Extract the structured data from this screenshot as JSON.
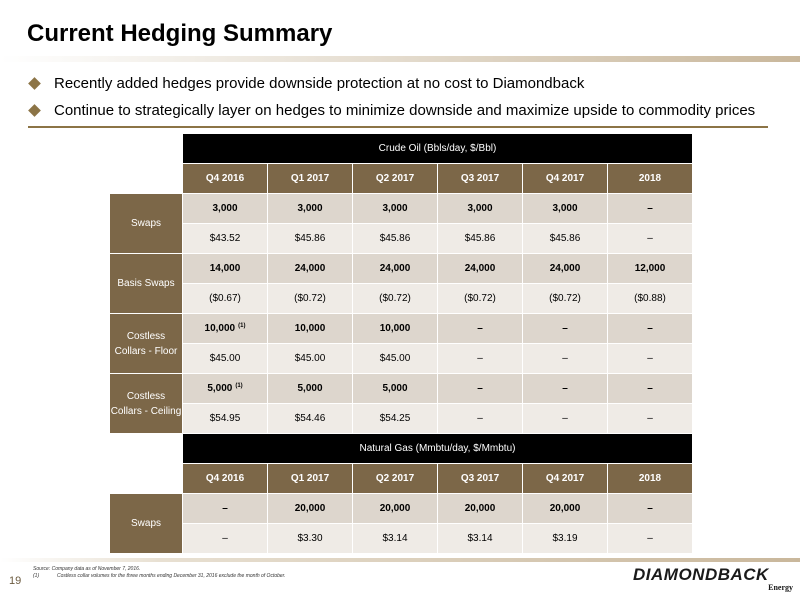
{
  "title": "Current Hedging Summary",
  "bullets": [
    "Recently added hedges provide downside protection at no cost to Diamondback",
    "Continue to strategically layer on hedges to minimize downside and maximize upside to commodity prices"
  ],
  "columns": [
    "Q4 2016",
    "Q1 2017",
    "Q2 2017",
    "Q3 2017",
    "Q4 2017",
    "2018"
  ],
  "crude_oil": {
    "title": "Crude Oil (Bbls/day, $/Bbl)",
    "groups": [
      {
        "label": "Swaps",
        "volume": [
          "3,000",
          "3,000",
          "3,000",
          "3,000",
          "3,000",
          "–"
        ],
        "price": [
          "$43.52",
          "$45.86",
          "$45.86",
          "$45.86",
          "$45.86",
          "–"
        ]
      },
      {
        "label": "Basis Swaps",
        "volume": [
          "14,000",
          "24,000",
          "24,000",
          "24,000",
          "24,000",
          "12,000"
        ],
        "price": [
          "($0.67)",
          "($0.72)",
          "($0.72)",
          "($0.72)",
          "($0.72)",
          "($0.88)"
        ]
      },
      {
        "label": "Costless Collars - Floor",
        "volume": [
          "10,000",
          "10,000",
          "10,000",
          "–",
          "–",
          "–"
        ],
        "volume_footnote": "(1)",
        "price": [
          "$45.00",
          "$45.00",
          "$45.00",
          "–",
          "–",
          "–"
        ]
      },
      {
        "label": "Costless Collars - Ceiling",
        "volume": [
          "5,000",
          "5,000",
          "5,000",
          "–",
          "–",
          "–"
        ],
        "volume_footnote": "(1)",
        "price": [
          "$54.95",
          "$54.46",
          "$54.25",
          "–",
          "–",
          "–"
        ]
      }
    ]
  },
  "natural_gas": {
    "title": "Natural Gas (Mmbtu/day, $/Mmbtu)",
    "groups": [
      {
        "label": "Swaps",
        "volume": [
          "–",
          "20,000",
          "20,000",
          "20,000",
          "20,000",
          "–"
        ],
        "price": [
          "–",
          "$3.30",
          "$3.14",
          "$3.14",
          "$3.19",
          "–"
        ]
      }
    ]
  },
  "footnotes": {
    "source": "Source: Company data as of November 7, 2016.",
    "note_num": "(1)",
    "note_text": "Costless collar volumes for the three months ending December 31, 2016 exclude the month of October."
  },
  "page_number": "19",
  "logo": {
    "name": "DIAMONDBACK",
    "sub": "Energy"
  },
  "colors": {
    "accent": "#8c7446",
    "header_bg": "#7c6748",
    "row_dark": "#ddd6cd",
    "row_light": "#efebe6"
  }
}
